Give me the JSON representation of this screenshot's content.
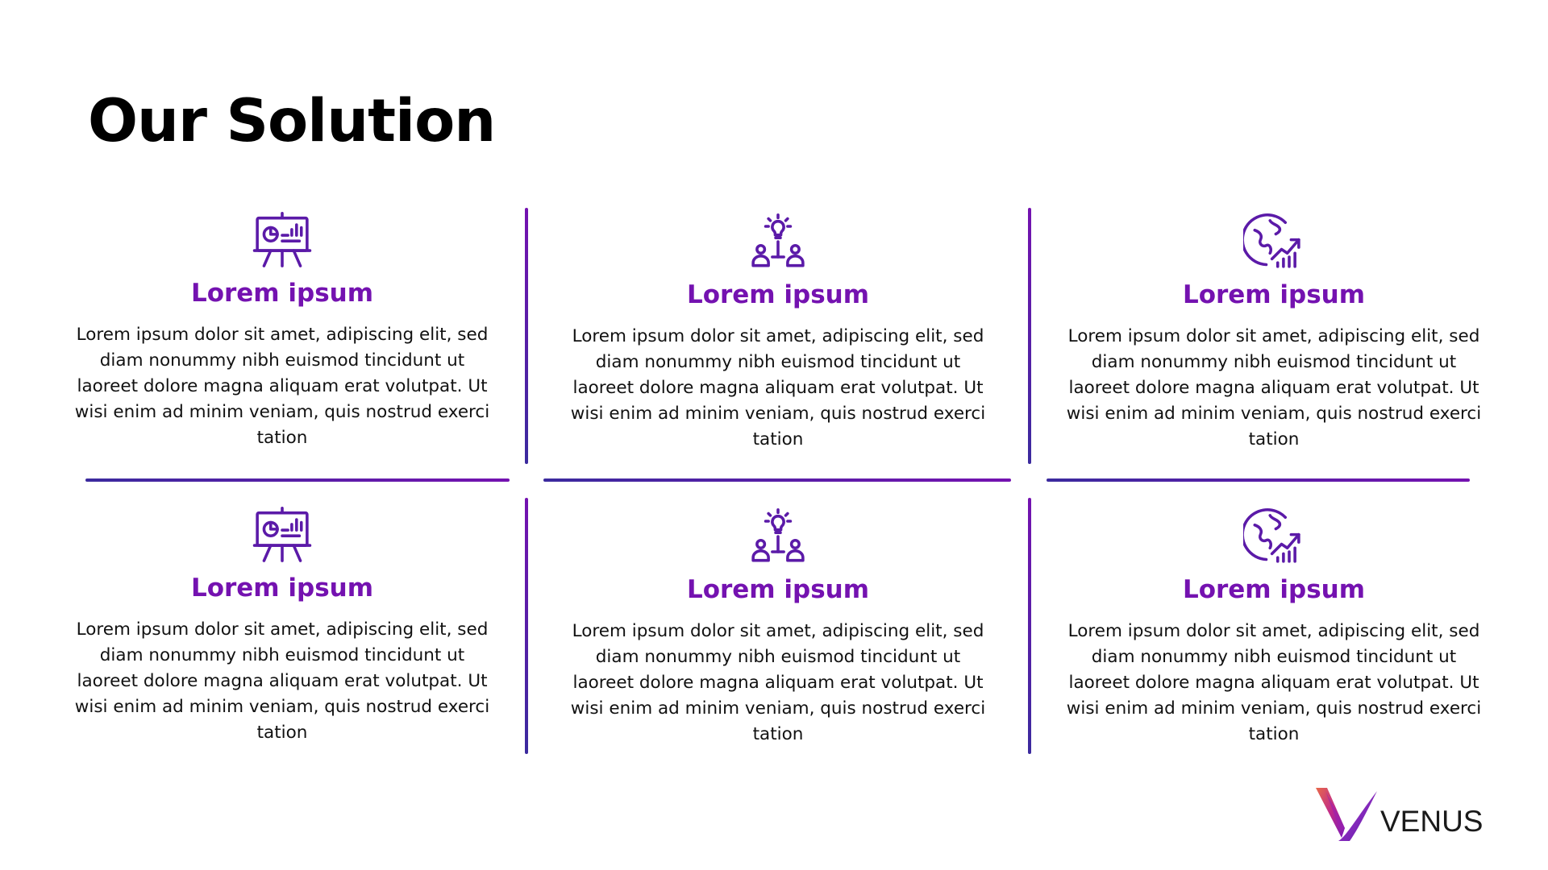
{
  "slide": {
    "title": "Our Solution"
  },
  "cards": [
    {
      "icon": "presentation-board-icon",
      "heading": "Lorem ipsum",
      "body": "Lorem ipsum dolor sit amet, adipiscing elit, sed diam nonummy nibh euismod tincidunt ut laoreet dolore magna aliquam erat volutpat. Ut wisi enim ad minim veniam, quis nostrud exerci tation"
    },
    {
      "icon": "team-idea-icon",
      "heading": "Lorem ipsum",
      "body": "Lorem ipsum dolor sit amet, adipiscing elit, sed diam nonummy nibh euismod tincidunt ut laoreet dolore magna aliquam erat volutpat. Ut wisi enim ad minim veniam, quis nostrud exerci tation"
    },
    {
      "icon": "globe-growth-icon",
      "heading": "Lorem ipsum",
      "body": "Lorem ipsum dolor sit amet, adipiscing elit, sed diam nonummy nibh euismod tincidunt ut laoreet dolore magna aliquam erat volutpat. Ut wisi enim ad minim veniam, quis nostrud exerci tation"
    },
    {
      "icon": "presentation-board-icon",
      "heading": "Lorem ipsum",
      "body": "Lorem ipsum dolor sit amet, adipiscing elit, sed diam nonummy nibh euismod tincidunt ut laoreet dolore magna aliquam erat volutpat. Ut wisi enim ad minim veniam, quis nostrud exerci tation"
    },
    {
      "icon": "team-idea-icon",
      "heading": "Lorem ipsum",
      "body": "Lorem ipsum dolor sit amet, adipiscing elit, sed diam nonummy nibh euismod tincidunt ut laoreet dolore magna aliquam erat volutpat. Ut wisi enim ad minim veniam, quis nostrud exerci tation"
    },
    {
      "icon": "globe-growth-icon",
      "heading": "Lorem ipsum",
      "body": "Lorem ipsum dolor sit amet, adipiscing elit, sed diam nonummy nibh euismod tincidunt ut laoreet dolore magna aliquam erat volutpat. Ut wisi enim ad minim veniam, quis nostrud exerci tation"
    }
  ],
  "brand": {
    "name": "VENUS",
    "logo_icon": "venus-v-logo-icon"
  },
  "colors": {
    "accent_purple": "#7412b0",
    "accent_indigo": "#3b2a9e",
    "text": "#111111",
    "background": "#ffffff"
  }
}
